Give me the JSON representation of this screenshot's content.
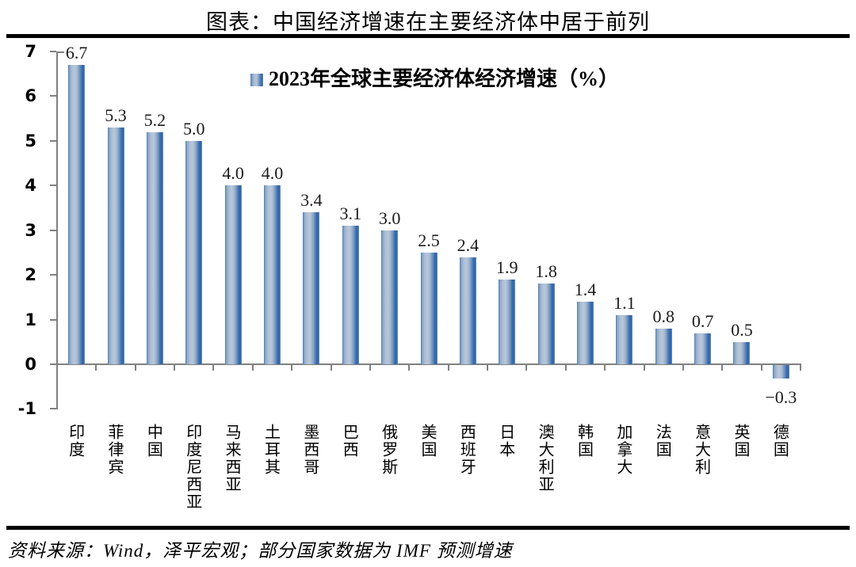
{
  "page": {
    "title": "图表：中国经济增速在主要经济体中居于前列",
    "source": "资料来源：Wind，泽平宏观；部分国家数据为 IMF 预测增速"
  },
  "chart_data": {
    "type": "bar",
    "title": "2023年全球主要经济体经济增速（%）",
    "legend_position": "top-center-inside",
    "categories": [
      "印度",
      "菲律宾",
      "中国",
      "印度尼西亚",
      "马来西亚",
      "土耳其",
      "墨西哥",
      "巴西",
      "俄罗斯",
      "美国",
      "西班牙",
      "日本",
      "澳大利亚",
      "韩国",
      "加拿大",
      "法国",
      "意大利",
      "英国",
      "德国"
    ],
    "values": [
      6.7,
      5.3,
      5.2,
      5.0,
      4.0,
      4.0,
      3.4,
      3.1,
      3.0,
      2.5,
      2.4,
      1.9,
      1.8,
      1.4,
      1.1,
      0.8,
      0.7,
      0.5,
      -0.3
    ],
    "value_labels": [
      "6.7",
      "5.3",
      "5.2",
      "5.0",
      "4.0",
      "4.0",
      "3.4",
      "3.1",
      "3.0",
      "2.5",
      "2.4",
      "1.9",
      "1.8",
      "1.4",
      "1.1",
      "0.8",
      "0.7",
      "0.5",
      "−0.3"
    ],
    "ylim": [
      -1,
      7
    ],
    "yticks": [
      7,
      6,
      5,
      4,
      3,
      2,
      1,
      0,
      -1
    ],
    "grid": false,
    "xlabel": "",
    "ylabel": "",
    "colors": {
      "bar_dark": "#2e63a8",
      "bar_light": "#b9c8da",
      "axis": "#808080",
      "text": "#000000"
    }
  }
}
